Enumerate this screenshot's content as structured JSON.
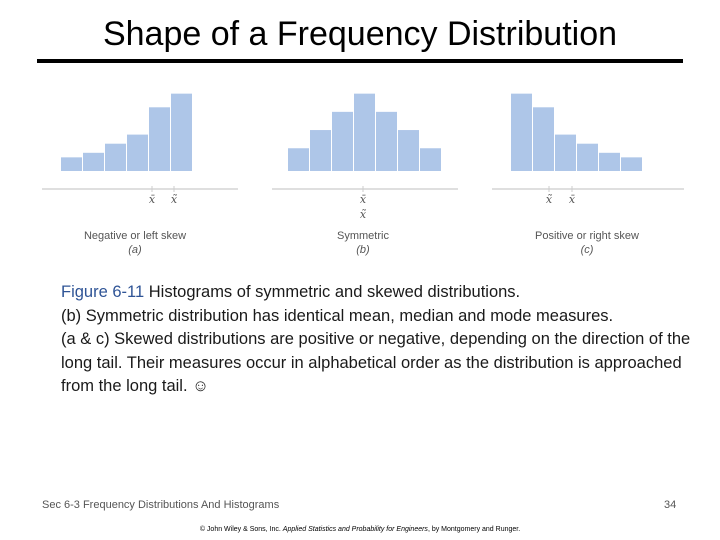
{
  "slide": {
    "title": "Shape of a Frequency Distribution",
    "caption": {
      "figure_label": "Figure 6-11",
      "figure_text": "Histograms of symmetric and skewed distributions.",
      "line2": "(b) Symmetric distribution has identical mean, median and mode measures.",
      "line3": "(a & c)  Skewed distributions are positive or negative, depending on the direction of the long tail.  Their measures occur in alphabetical order as the distribution is approached from the long tail.",
      "smiley": "☺"
    },
    "footer": {
      "section": "Sec 6-3 Frequency Distributions And Histograms",
      "page_number": "34"
    },
    "copyright": {
      "prefix": "© John Wiley & Sons, Inc. ",
      "book_title": "Applied Statistics and Probability for Engineers",
      "suffix": ", by Montgomery and Runger."
    }
  },
  "chart_data": [
    {
      "type": "bar",
      "name": "Negative or left skew",
      "panel_label": "(a)",
      "values": [
        3,
        4,
        6,
        8,
        14,
        17
      ],
      "markers": [
        "x̄",
        "x̃"
      ],
      "colors": {
        "bar": "#aec6e8",
        "axis": "#cccccc",
        "text": "#555555"
      }
    },
    {
      "type": "bar",
      "name": "Symmetric",
      "panel_label": "(b)",
      "values": [
        5,
        9,
        13,
        17,
        13,
        9,
        5
      ],
      "markers": [
        "x̄",
        "x̃"
      ],
      "colors": {
        "bar": "#aec6e8",
        "axis": "#cccccc",
        "text": "#555555"
      }
    },
    {
      "type": "bar",
      "name": "Positive or right skew",
      "panel_label": "(c)",
      "values": [
        17,
        14,
        8,
        6,
        4,
        3
      ],
      "markers": [
        "x̃",
        "x̄"
      ],
      "colors": {
        "bar": "#aec6e8",
        "axis": "#cccccc",
        "text": "#555555"
      }
    }
  ]
}
